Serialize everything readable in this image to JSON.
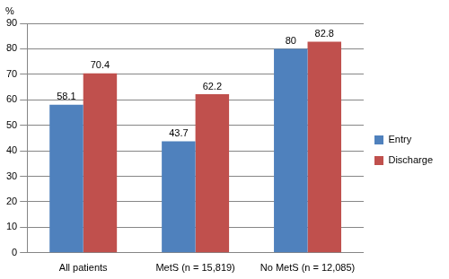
{
  "chart_data": {
    "type": "bar",
    "y_label": "%",
    "categories": [
      "All patients",
      "MetS (n = 15,819)",
      "No MetS (n = 12,085)"
    ],
    "series": [
      {
        "name": "Entry",
        "color": "#4f81bd",
        "values": [
          58.1,
          43.7,
          80
        ]
      },
      {
        "name": "Discharge",
        "color": "#c0504d",
        "values": [
          70.4,
          62.2,
          82.8
        ]
      }
    ],
    "ylim": [
      0,
      90
    ],
    "yticks": [
      0,
      10,
      20,
      30,
      40,
      50,
      60,
      70,
      80,
      90
    ],
    "grid": true,
    "legend": "right",
    "data_labels": true
  }
}
